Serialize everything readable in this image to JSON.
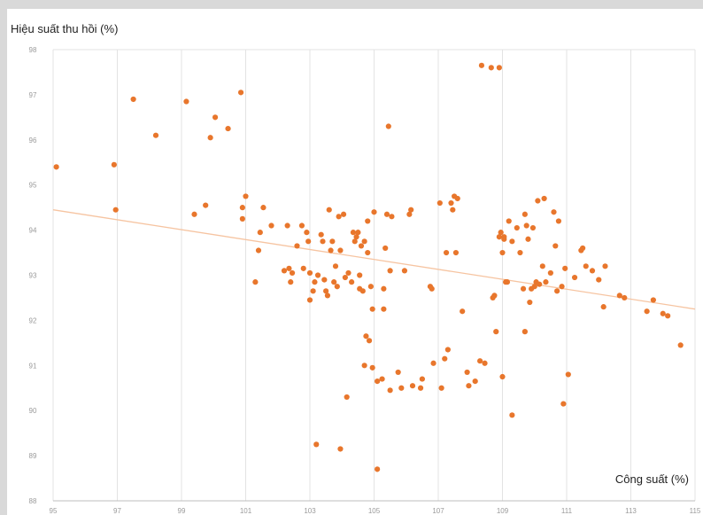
{
  "chart_data": {
    "type": "scatter",
    "title": "",
    "xlabel": "Công suất (%)",
    "ylabel": "Hiệu suất thu hồi (%)",
    "xlim": [
      95,
      115
    ],
    "ylim": [
      88,
      98
    ],
    "xticks": [
      "95",
      "97",
      "99",
      "101",
      "103",
      "105",
      "107",
      "109",
      "111",
      "113",
      "115"
    ],
    "yticks": [
      "88",
      "89",
      "90",
      "91",
      "92",
      "93",
      "94",
      "95",
      "96",
      "97",
      "98"
    ],
    "grid": "vertical",
    "colors": {
      "points": "#e8762c",
      "trendline": "#f6c4a1",
      "grid": "#e3e3e3"
    },
    "trendline": {
      "x": [
        95,
        115
      ],
      "y": [
        94.45,
        92.25
      ]
    },
    "series": [
      {
        "points": [
          [
            95.1,
            95.4
          ],
          [
            96.9,
            95.45
          ],
          [
            96.95,
            94.45
          ],
          [
            97.5,
            96.9
          ],
          [
            98.2,
            96.1
          ],
          [
            99.15,
            96.85
          ],
          [
            99.4,
            94.35
          ],
          [
            99.75,
            94.55
          ],
          [
            99.9,
            96.05
          ],
          [
            100.05,
            96.5
          ],
          [
            100.45,
            96.25
          ],
          [
            100.85,
            97.05
          ],
          [
            100.9,
            94.5
          ],
          [
            100.9,
            94.25
          ],
          [
            101.0,
            94.75
          ],
          [
            101.3,
            92.85
          ],
          [
            101.4,
            93.55
          ],
          [
            101.45,
            93.95
          ],
          [
            101.55,
            94.5
          ],
          [
            101.8,
            94.1
          ],
          [
            102.2,
            93.1
          ],
          [
            102.3,
            94.1
          ],
          [
            102.35,
            93.15
          ],
          [
            102.4,
            92.85
          ],
          [
            102.45,
            93.05
          ],
          [
            102.6,
            93.65
          ],
          [
            102.75,
            94.1
          ],
          [
            102.8,
            93.15
          ],
          [
            102.9,
            93.95
          ],
          [
            102.95,
            93.75
          ],
          [
            103.0,
            93.05
          ],
          [
            103.0,
            92.45
          ],
          [
            103.1,
            92.65
          ],
          [
            103.15,
            92.85
          ],
          [
            103.25,
            93.0
          ],
          [
            103.35,
            93.9
          ],
          [
            103.4,
            93.75
          ],
          [
            103.45,
            92.9
          ],
          [
            103.5,
            92.65
          ],
          [
            103.55,
            92.55
          ],
          [
            103.6,
            94.45
          ],
          [
            103.65,
            93.55
          ],
          [
            103.7,
            93.75
          ],
          [
            103.75,
            92.85
          ],
          [
            103.8,
            93.2
          ],
          [
            103.85,
            92.75
          ],
          [
            103.9,
            94.3
          ],
          [
            103.95,
            93.55
          ],
          [
            104.05,
            94.35
          ],
          [
            104.1,
            92.95
          ],
          [
            104.15,
            90.3
          ],
          [
            104.2,
            93.05
          ],
          [
            104.3,
            92.85
          ],
          [
            104.35,
            93.95
          ],
          [
            104.4,
            93.75
          ],
          [
            104.45,
            93.85
          ],
          [
            104.5,
            93.95
          ],
          [
            104.55,
            93.0
          ],
          [
            104.55,
            92.7
          ],
          [
            104.6,
            93.65
          ],
          [
            104.65,
            92.65
          ],
          [
            104.7,
            93.75
          ],
          [
            104.75,
            91.65
          ],
          [
            104.8,
            94.2
          ],
          [
            104.8,
            93.5
          ],
          [
            104.85,
            91.55
          ],
          [
            104.9,
            92.75
          ],
          [
            104.95,
            92.25
          ],
          [
            104.95,
            90.95
          ],
          [
            104.7,
            91.0
          ],
          [
            105.0,
            94.4
          ],
          [
            105.1,
            90.65
          ],
          [
            105.1,
            88.7
          ],
          [
            105.25,
            90.7
          ],
          [
            105.3,
            92.7
          ],
          [
            105.3,
            92.25
          ],
          [
            105.35,
            93.6
          ],
          [
            105.4,
            94.35
          ],
          [
            105.45,
            96.3
          ],
          [
            105.5,
            93.1
          ],
          [
            105.5,
            90.45
          ],
          [
            105.55,
            94.3
          ],
          [
            105.75,
            90.85
          ],
          [
            105.85,
            90.5
          ],
          [
            105.95,
            93.1
          ],
          [
            106.1,
            94.35
          ],
          [
            106.15,
            94.45
          ],
          [
            106.2,
            90.55
          ],
          [
            106.45,
            90.5
          ],
          [
            106.5,
            90.7
          ],
          [
            106.75,
            92.75
          ],
          [
            106.8,
            92.7
          ],
          [
            106.85,
            91.05
          ],
          [
            107.05,
            94.6
          ],
          [
            107.1,
            90.5
          ],
          [
            107.2,
            91.15
          ],
          [
            107.25,
            93.5
          ],
          [
            107.3,
            91.35
          ],
          [
            107.4,
            94.6
          ],
          [
            107.45,
            94.45
          ],
          [
            107.5,
            94.75
          ],
          [
            107.55,
            93.5
          ],
          [
            107.6,
            94.7
          ],
          [
            107.75,
            92.2
          ],
          [
            107.9,
            90.85
          ],
          [
            107.95,
            90.55
          ],
          [
            108.15,
            90.65
          ],
          [
            108.3,
            91.1
          ],
          [
            108.35,
            97.65
          ],
          [
            108.45,
            91.05
          ],
          [
            108.65,
            97.6
          ],
          [
            108.7,
            92.5
          ],
          [
            108.75,
            92.55
          ],
          [
            108.8,
            91.75
          ],
          [
            108.9,
            97.6
          ],
          [
            108.9,
            93.85
          ],
          [
            108.95,
            93.95
          ],
          [
            109.0,
            93.5
          ],
          [
            109.0,
            90.75
          ],
          [
            109.05,
            93.8
          ],
          [
            109.05,
            93.85
          ],
          [
            109.1,
            92.85
          ],
          [
            109.15,
            92.85
          ],
          [
            109.2,
            94.2
          ],
          [
            109.3,
            93.75
          ],
          [
            109.3,
            89.9
          ],
          [
            109.45,
            94.05
          ],
          [
            109.55,
            93.5
          ],
          [
            109.65,
            92.7
          ],
          [
            109.7,
            91.75
          ],
          [
            109.7,
            94.35
          ],
          [
            109.75,
            94.1
          ],
          [
            109.8,
            93.8
          ],
          [
            109.85,
            92.4
          ],
          [
            109.9,
            92.7
          ],
          [
            109.95,
            94.05
          ],
          [
            110.0,
            92.75
          ],
          [
            110.05,
            92.85
          ],
          [
            110.1,
            94.65
          ],
          [
            110.15,
            92.8
          ],
          [
            110.25,
            93.2
          ],
          [
            110.3,
            94.7
          ],
          [
            110.35,
            92.85
          ],
          [
            110.5,
            93.05
          ],
          [
            110.6,
            94.4
          ],
          [
            110.65,
            93.65
          ],
          [
            110.7,
            92.65
          ],
          [
            110.75,
            94.2
          ],
          [
            110.85,
            92.75
          ],
          [
            110.9,
            90.15
          ],
          [
            110.95,
            93.15
          ],
          [
            111.05,
            90.8
          ],
          [
            111.25,
            92.95
          ],
          [
            111.45,
            93.55
          ],
          [
            111.5,
            93.6
          ],
          [
            111.6,
            93.2
          ],
          [
            111.8,
            93.1
          ],
          [
            112.0,
            92.9
          ],
          [
            112.15,
            92.3
          ],
          [
            112.2,
            93.2
          ],
          [
            112.65,
            92.55
          ],
          [
            112.8,
            92.5
          ],
          [
            113.5,
            92.2
          ],
          [
            113.7,
            92.45
          ],
          [
            114.0,
            92.15
          ],
          [
            114.15,
            92.1
          ],
          [
            114.55,
            91.45
          ],
          [
            103.2,
            89.25
          ],
          [
            103.95,
            89.15
          ]
        ]
      }
    ]
  }
}
